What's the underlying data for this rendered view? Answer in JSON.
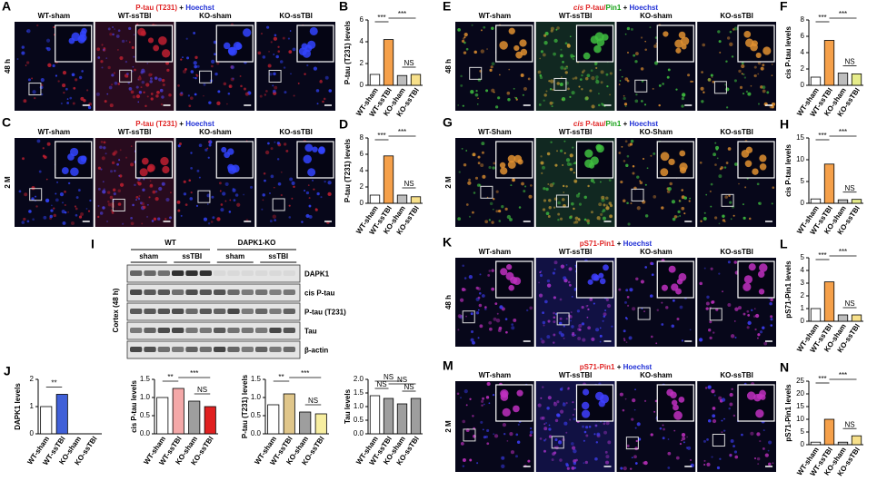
{
  "image_panels": [
    {
      "letter": "A",
      "title_parts": [
        {
          "text": "P-tau (T231)",
          "color": "#e02424"
        },
        {
          "text": "+",
          "color": "#000000"
        },
        {
          "text": "Hoechst",
          "color": "#1f2fd6"
        }
      ],
      "groups": [
        "WT-sham",
        "WT-ssTBI",
        "KO-sham",
        "KO-ssTBI"
      ],
      "time": "48 h"
    },
    {
      "letter": "C",
      "title_parts": [
        {
          "text": "P-tau (T231)",
          "color": "#e02424"
        },
        {
          "text": "+",
          "color": "#000000"
        },
        {
          "text": "Hoechst",
          "color": "#1f2fd6"
        }
      ],
      "groups": [
        "WT-sham",
        "WT-ssTBI",
        "KO-sham",
        "KO-ssTBI"
      ],
      "time": "2 M"
    },
    {
      "letter": "E",
      "title_parts": [
        {
          "text": "cis",
          "color": "#e02424"
        },
        {
          "text": "P-tau/",
          "color": "#e02424"
        },
        {
          "text": "Pin1",
          "color": "#14a014"
        },
        {
          "text": "+",
          "color": "#000000"
        },
        {
          "text": "Hoechst",
          "color": "#1f2fd6"
        }
      ],
      "groups": [
        "WT-sham",
        "WT-ssTBI",
        "KO-sham",
        "KO-ssTBI"
      ],
      "time": "48 h"
    },
    {
      "letter": "G",
      "title_parts": [
        {
          "text": "cis",
          "color": "#e02424"
        },
        {
          "text": "P-tau/",
          "color": "#e02424"
        },
        {
          "text": "Pin1",
          "color": "#14a014"
        },
        {
          "text": "+",
          "color": "#000000"
        },
        {
          "text": "Hoechst",
          "color": "#1f2fd6"
        }
      ],
      "groups": [
        "WT-Sham",
        "WT-ssTBI",
        "KO-Sham",
        "KO-ssTBI"
      ],
      "time": "2 M"
    },
    {
      "letter": "K",
      "title_parts": [
        {
          "text": "pS71-Pin1",
          "color": "#e02424"
        },
        {
          "text": "+",
          "color": "#000000"
        },
        {
          "text": "Hoechst",
          "color": "#1f2fd6"
        }
      ],
      "groups": [
        "WT-sham",
        "WT-ssTBI",
        "KO-sham",
        "KO-ssTBI"
      ],
      "time": "48 h"
    },
    {
      "letter": "M",
      "title_parts": [
        {
          "text": "pS71-Pin1",
          "color": "#e02424"
        },
        {
          "text": "+",
          "color": "#000000"
        },
        {
          "text": "Hoechst",
          "color": "#1f2fd6"
        }
      ],
      "groups": [
        "WT-sham",
        "WT-ssTBI",
        "KO-sham",
        "KO-ssTBI"
      ],
      "time": "2 M"
    }
  ],
  "blot": {
    "letter": "I",
    "genotypes": [
      "WT",
      "DAPK1-KO"
    ],
    "conditions": [
      "sham",
      "ssTBI",
      "sham",
      "ssTBI"
    ],
    "rows": [
      "DAPK1",
      "cis P-tau",
      "P-tau (T231)",
      "Tau",
      "β-actin"
    ],
    "side_label": "Cortex (48 h)"
  },
  "j_letter": "J",
  "chart_data": [
    {
      "type": "bar",
      "letter": "B",
      "y_label": "P-tau (T231) levels",
      "categories": [
        "WT-sham",
        "WT-ssTBI",
        "KO-sham",
        "KO-ssTBI"
      ],
      "values": [
        1.0,
        4.2,
        0.9,
        1.0
      ],
      "colors": [
        "#ffffff",
        "#f5a04a",
        "#bdbdbd",
        "#f7e08a"
      ],
      "ylim": [
        0,
        6
      ],
      "yticks": [
        0,
        2,
        4,
        6
      ],
      "annotations": [
        "***",
        "***",
        "NS"
      ]
    },
    {
      "type": "bar",
      "letter": "D",
      "y_label": "P-tau (T231) levels",
      "categories": [
        "WT-sham",
        "WT-ssTBI",
        "KO-sham",
        "KO-ssTBI"
      ],
      "values": [
        1.0,
        5.8,
        1.0,
        0.8
      ],
      "colors": [
        "#ffffff",
        "#f5a04a",
        "#bdbdbd",
        "#f7e08a"
      ],
      "ylim": [
        0,
        8
      ],
      "yticks": [
        0,
        2,
        4,
        6,
        8
      ],
      "annotations": [
        "***",
        "***",
        "NS"
      ]
    },
    {
      "type": "bar",
      "letter": "F",
      "y_label": "cis P-tau levels",
      "categories": [
        "WT-sham",
        "WT-ssTBI",
        "KO-sham",
        "KO-ssTBI"
      ],
      "values": [
        1.0,
        5.5,
        1.5,
        1.4
      ],
      "colors": [
        "#ffffff",
        "#f5a04a",
        "#bdbdbd",
        "#e6ec8a"
      ],
      "ylim": [
        0,
        8
      ],
      "yticks": [
        0,
        2,
        4,
        6,
        8
      ],
      "annotations": [
        "***",
        "***",
        "NS"
      ]
    },
    {
      "type": "bar",
      "letter": "H",
      "y_label": "cis P-tau levels",
      "categories": [
        "WT-sham",
        "WT-ssTBI",
        "KO-sham",
        "KO-ssTBI"
      ],
      "values": [
        1.0,
        9.0,
        0.8,
        0.9
      ],
      "colors": [
        "#ffffff",
        "#f5a04a",
        "#bdbdbd",
        "#e6ec8a"
      ],
      "ylim": [
        0,
        15
      ],
      "yticks": [
        0,
        5,
        10,
        15
      ],
      "annotations": [
        "***",
        "***",
        "NS"
      ]
    },
    {
      "type": "bar",
      "letter": "L",
      "y_label": "pS71-Pin1 levels",
      "categories": [
        "WT-sham",
        "WT-ssTBI",
        "KO-sham",
        "KO-ssTBI"
      ],
      "values": [
        1.0,
        3.1,
        0.5,
        0.5
      ],
      "colors": [
        "#ffffff",
        "#f5a04a",
        "#bdbdbd",
        "#f7e08a"
      ],
      "ylim": [
        0,
        5
      ],
      "yticks": [
        0,
        1,
        2,
        3,
        4,
        5
      ],
      "annotations": [
        "***",
        "***",
        "NS"
      ]
    },
    {
      "type": "bar",
      "letter": "N",
      "y_label": "pS71-Pin1 levels",
      "categories": [
        "WT-sham",
        "WT-ssTBI",
        "KO-sham",
        "KO-ssTBI"
      ],
      "values": [
        1.0,
        10.0,
        1.0,
        3.5
      ],
      "colors": [
        "#ffffff",
        "#f5a04a",
        "#bdbdbd",
        "#f7e08a"
      ],
      "ylim": [
        0,
        25
      ],
      "yticks": [
        0,
        5,
        10,
        15,
        20,
        25
      ],
      "annotations": [
        "***",
        "***",
        "NS"
      ]
    },
    {
      "type": "bar",
      "y_label": "DAPK1 levels",
      "categories": [
        "WT-sham",
        "WT-ssTBI",
        "KO-sham",
        "KO-ssTBI"
      ],
      "values": [
        1.0,
        1.45,
        0,
        0
      ],
      "colors": [
        "#ffffff",
        "#4060d8",
        "#bdbdbd",
        "#bdbdbd"
      ],
      "ylim": [
        0,
        2
      ],
      "yticks": [
        0,
        1,
        2
      ],
      "annotations": [
        "**"
      ]
    },
    {
      "type": "bar",
      "y_label": "cis P-tau levels",
      "categories": [
        "WT-sham",
        "WT-ssTBI",
        "KO-sham",
        "KO-ssTBI"
      ],
      "values": [
        1.0,
        1.25,
        0.9,
        0.75
      ],
      "colors": [
        "#ffffff",
        "#f4a8a8",
        "#9e9e9e",
        "#e02020"
      ],
      "ylim": [
        0,
        1.5
      ],
      "yticks": [
        {
          "value": 0,
          "label": "0.0"
        },
        {
          "value": 0.5,
          "label": "0.5"
        },
        {
          "value": 1,
          "label": "1.0"
        },
        {
          "value": 1.5,
          "label": "1.5"
        }
      ],
      "annotations": [
        "**",
        "***",
        "NS"
      ]
    },
    {
      "type": "bar",
      "y_label": "P-tau (T231) levels",
      "categories": [
        "WT-sham",
        "WT-ssTBI",
        "KO-sham",
        "KO-ssTBI"
      ],
      "values": [
        0.8,
        1.1,
        0.6,
        0.55
      ],
      "colors": [
        "#ffffff",
        "#e0c68a",
        "#9e9e9e",
        "#f7eea0"
      ],
      "ylim": [
        0,
        1.5
      ],
      "yticks": [
        {
          "value": 0,
          "label": "0.0"
        },
        {
          "value": 0.5,
          "label": "0.5"
        },
        {
          "value": 1,
          "label": "1.0"
        },
        {
          "value": 1.5,
          "label": "1.5"
        }
      ],
      "annotations": [
        "**",
        "***",
        "NS"
      ]
    },
    {
      "type": "bar",
      "y_label": "Tau levels",
      "categories": [
        "WT-sham",
        "WT-ssTBI",
        "KO-sham",
        "KO-ssTBI"
      ],
      "values": [
        1.4,
        1.3,
        1.1,
        1.3
      ],
      "colors": [
        "#ffffff",
        "#9e9e9e",
        "#9e9e9e",
        "#9e9e9e"
      ],
      "ylim": [
        0,
        2
      ],
      "yticks": [
        {
          "value": 0,
          "label": "0.0"
        },
        {
          "value": 0.5,
          "label": "0.5"
        },
        {
          "value": 1,
          "label": "1.0"
        },
        {
          "value": 1.5,
          "label": "1.5"
        },
        {
          "value": 2,
          "label": "2.0"
        }
      ],
      "annotations": [
        "NS",
        "NS",
        "NS",
        "NS"
      ]
    }
  ]
}
